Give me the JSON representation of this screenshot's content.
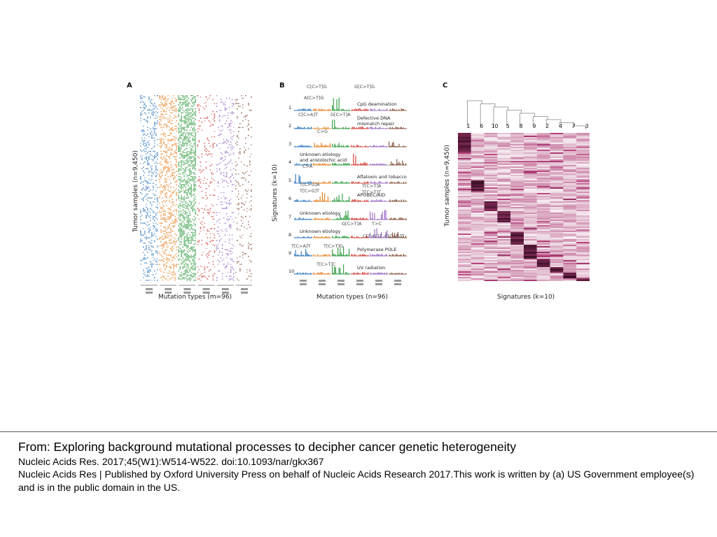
{
  "figure": {
    "panel_a": {
      "letter": "A",
      "ylabel": "Tumor samples (n=9,450)",
      "xlabel": "Mutation types (m=96)",
      "group_colors": [
        "#3a7fc1",
        "#e8872e",
        "#3aa04a",
        "#d1453f",
        "#9b6fc6",
        "#8a5a44"
      ]
    },
    "panel_b": {
      "letter": "B",
      "ylabel": "Signatures (k=10)",
      "xlabel": "Mutation types (n=96)",
      "signatures": [
        {
          "num": "1",
          "name": "CpG deamination"
        },
        {
          "num": "2",
          "name": "Defective DNA\nmismatch repair"
        },
        {
          "num": "3",
          "name": ""
        },
        {
          "num": "4",
          "name": "Unknown etiology\nand aristolochic acid"
        },
        {
          "num": "5",
          "name": "Aflatoxin and tobacco"
        },
        {
          "num": "6",
          "name": "APOBEC/AID"
        },
        {
          "num": "7",
          "name": "Unknown etiology"
        },
        {
          "num": "8",
          "name": "Unknown etiology"
        },
        {
          "num": "9",
          "name": "Polymerase POLE"
        },
        {
          "num": "10",
          "name": "UV radiation"
        }
      ],
      "callouts": [
        "C[C>T]G",
        "G[C>T]G",
        "A[C>T]G",
        "C[C>A]T",
        "G[C>T]A",
        "C>G",
        "C>A",
        "T[C>G]A",
        "T[C>G]T",
        "T[C>T]A",
        "T[C>T]T",
        "G[C>T]A",
        "T>C",
        "C[T>C]T",
        "C[C>G]T",
        "T[C>A]T",
        "T[C>T]G",
        "T[C>T]C"
      ]
    },
    "panel_c": {
      "letter": "C",
      "ylabel": "Tumor samples (n=9,450)",
      "xlabel": "Signatures (k=10)",
      "column_order": [
        "1",
        "6",
        "10",
        "5",
        "8",
        "9",
        "2",
        "4",
        "7",
        "3"
      ]
    }
  },
  "caption": {
    "title": "From: Exploring background mutational processes to decipher cancer genetic heterogeneity",
    "citation": "Nucleic Acids Res. 2017;45(W1):W514-W522. doi:10.1093/nar/gkx367",
    "license": "Nucleic Acids Res | Published by Oxford University Press on behalf of Nucleic Acids Research 2017.This work is written by (a) US Government employee(s) and is in the public domain in the US."
  }
}
